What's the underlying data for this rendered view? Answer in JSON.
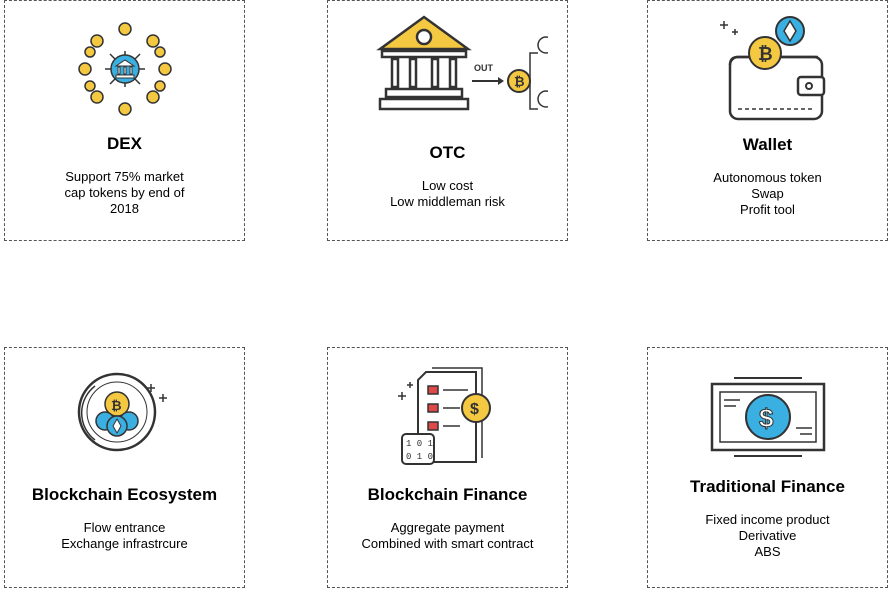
{
  "cards": [
    {
      "title": "DEX",
      "lines": [
        "Support 75% market",
        "cap tokens by end of",
        "2018"
      ],
      "icon": "dex-network-icon"
    },
    {
      "title": "OTC",
      "lines": [
        "Low cost",
        "Low middleman risk"
      ],
      "icon": "otc-bank-transfer-icon",
      "icon_text": "OUT"
    },
    {
      "title": "Wallet",
      "lines": [
        "Autonomous token",
        "Swap",
        "Profit tool"
      ],
      "icon": "wallet-icon"
    },
    {
      "title": "Blockchain Ecosystem",
      "lines": [
        "Flow entrance",
        "Exchange infrastrcure"
      ],
      "icon": "crypto-ecosystem-icon"
    },
    {
      "title": "Blockchain Finance",
      "lines": [
        "Aggregate payment",
        "Combined with smart contract"
      ],
      "icon": "smart-contract-document-icon"
    },
    {
      "title": "Traditional Finance",
      "lines": [
        "Fixed income product",
        "Derivative",
        "ABS"
      ],
      "icon": "dollar-banknote-icon"
    }
  ],
  "colors": {
    "gold": "#f5c842",
    "blue": "#3ab0e2",
    "dark": "#333333",
    "gray": "#555555",
    "red": "#e04848"
  }
}
